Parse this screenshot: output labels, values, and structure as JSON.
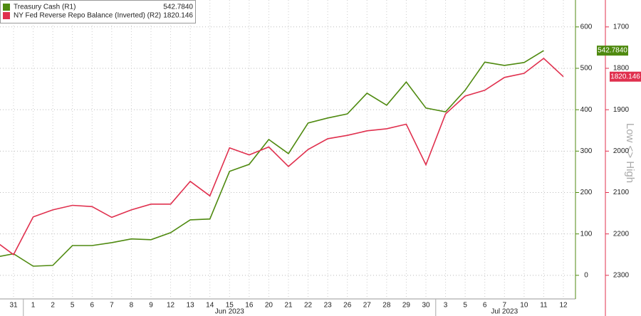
{
  "chart_data": {
    "type": "line",
    "categories": [
      null,
      "31",
      "1",
      "2",
      "5",
      "6",
      "7",
      "8",
      "9",
      "12",
      "13",
      "14",
      "15",
      "16",
      "20",
      "21",
      "22",
      "23",
      "26",
      "27",
      "28",
      "29",
      "30",
      "3",
      "5",
      "6",
      "7",
      "10",
      "11",
      "12"
    ],
    "x_groups": [
      {
        "label": "Jun 2023",
        "from": 2,
        "to": 22
      },
      {
        "label": "Jul 2023",
        "from": 23,
        "to": 29
      }
    ],
    "series": [
      {
        "name": "Treasury Cash (R1)",
        "color": "#4f8a10",
        "axis": "y",
        "values": [
          43,
          52,
          22,
          24,
          72,
          72,
          79,
          88,
          86,
          103,
          134,
          136,
          251,
          268,
          328,
          294,
          368,
          380,
          390,
          440,
          411,
          467,
          404,
          395,
          447,
          515,
          507,
          514,
          542.784,
          null
        ],
        "value_labels": [
          null,
          null,
          null,
          null,
          null,
          null,
          null,
          null,
          null,
          null,
          null,
          null,
          null,
          null,
          null,
          null,
          null,
          null,
          null,
          null,
          null,
          null,
          null,
          null,
          null,
          null,
          null,
          null,
          "542.7840",
          null
        ]
      },
      {
        "name": "NY Fed Reverse Repo Balance (Inverted) (R2)",
        "color": "#e0304e",
        "axis": "y2",
        "values": [
          2215,
          2250,
          2159,
          2142,
          2131,
          2134,
          2160,
          2142,
          2128,
          2128,
          2073,
          2108,
          1992,
          2009,
          1990,
          2037,
          1996,
          1970,
          1962,
          1951,
          1946,
          1935,
          2033,
          1910,
          1867,
          1853,
          1822,
          1812,
          1776,
          1820.146
        ]
      }
    ],
    "ylim": [
      -57,
      665
    ],
    "yticks": [
      0,
      100,
      200,
      300,
      400,
      500,
      600
    ],
    "y2lim": [
      2357,
      1635
    ],
    "y2ticks": [
      1700,
      1800,
      1900,
      2000,
      2100,
      2200,
      2300
    ],
    "y2_inverted": true,
    "annotation": "Low <> High",
    "grid": true,
    "legend": "upper left"
  }
}
